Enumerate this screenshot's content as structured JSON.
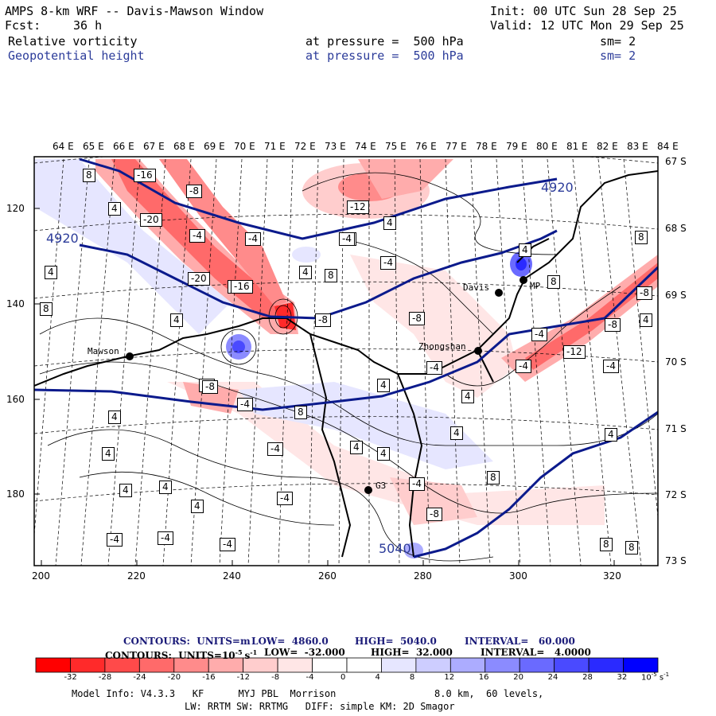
{
  "header": {
    "title": "AMPS 8-km WRF -- Davis-Mawson Window",
    "fcst_label": "Fcst:",
    "fcst_value": "36 h",
    "init": "Init: 00 UTC Sun 28 Sep 25",
    "valid": "Valid: 12 UTC Mon 29 Sep 25",
    "field1": {
      "name": "Relative vorticity",
      "level": "at pressure =  500 hPa",
      "sm": "sm= 2"
    },
    "field2": {
      "name": "Geopotential height",
      "level": "at pressure =  500 hPa",
      "sm": "sm= 2"
    }
  },
  "longitude_labels": [
    "64 E",
    "65 E",
    "66 E",
    "67 E",
    "68 E",
    "69 E",
    "70 E",
    "71 E",
    "72 E",
    "73 E",
    "74 E",
    "75 E",
    "76 E",
    "77 E",
    "78 E",
    "79 E",
    "80 E",
    "81 E",
    "82 E",
    "83 E",
    "84 E"
  ],
  "latitude_labels": [
    "67 S",
    "68 S",
    "69 S",
    "70 S",
    "71 S",
    "72 S",
    "73 S"
  ],
  "x_ticks": [
    "200",
    "220",
    "240",
    "260",
    "280",
    "300",
    "320"
  ],
  "y_ticks": [
    "120",
    "140",
    "160",
    "180"
  ],
  "stations": [
    {
      "name": "Mawson"
    },
    {
      "name": "Davis"
    },
    {
      "name": "Zhongshan"
    },
    {
      "name": "G3"
    },
    {
      "name": "MP"
    }
  ],
  "height_contour_labels": [
    "4920",
    "4920",
    "5040"
  ],
  "vorticity_labels": [
    "8",
    "-16",
    "-8",
    "4",
    "-20",
    "-4",
    "-4",
    "-16",
    "-12",
    "-8",
    "4",
    "-4",
    "-20",
    "-16",
    "4",
    "8",
    "4",
    "-8",
    "-4",
    "8",
    "4",
    "-8",
    "-4",
    "8",
    "4",
    "-8",
    "-4",
    "4",
    "8",
    "-8",
    "-4",
    "-4",
    "-12",
    "8",
    "4",
    "4",
    "-8",
    "4",
    "-8",
    "-4",
    "-4",
    "4",
    "4",
    "8",
    "4",
    "8",
    "-4",
    "-4",
    "-4",
    "-4",
    "4",
    "4",
    "4",
    "-4",
    "4",
    "-8",
    "4",
    "8"
  ],
  "legend": {
    "height_line": {
      "label": "CONTOURS:  UNITS=m",
      "low": "LOW=  4860.0",
      "high": "HIGH=  5040.0",
      "interval": "INTERVAL=   60.000"
    },
    "vort_line": {
      "label": "CONTOURS:  UNITS=10",
      "exp": "-5",
      "unit": "s",
      "uexp": "-1",
      "low": "LOW=  -32.000",
      "high": "HIGH=  32.000",
      "interval": "INTERVAL=   4.0000"
    }
  },
  "colorbar": {
    "colors": [
      "#ff0000",
      "#ff2a2a",
      "#ff4a4a",
      "#ff6a6a",
      "#ff8b8b",
      "#ffacac",
      "#ffcdcd",
      "#ffe6e6",
      "#ffffff",
      "#ffffff",
      "#e6e6ff",
      "#cdcdff",
      "#acacff",
      "#8b8bff",
      "#6a6aff",
      "#4a4aff",
      "#2a2aff",
      "#0000ff"
    ],
    "ticks": [
      "-32",
      "-28",
      "-24",
      "-20",
      "-16",
      "-12",
      "-8",
      "-4",
      "0",
      "4",
      "8",
      "12",
      "16",
      "20",
      "24",
      "28",
      "32"
    ],
    "units_base": "10",
    "units_exp": "-5",
    "units_s": "s",
    "units_sexp": "-1"
  },
  "footer": {
    "line1a": "Model Info: V4.3.3   KF      MYJ PBL  Morrison",
    "line1b": "8.0 km,  60 levels,",
    "line2": "LW: RRTM SW: RRTMG   DIFF: simple KM: 2D Smagor"
  },
  "colors": {
    "height_contour": "#0b1a8c",
    "text_blue": "#2c3c9a"
  }
}
